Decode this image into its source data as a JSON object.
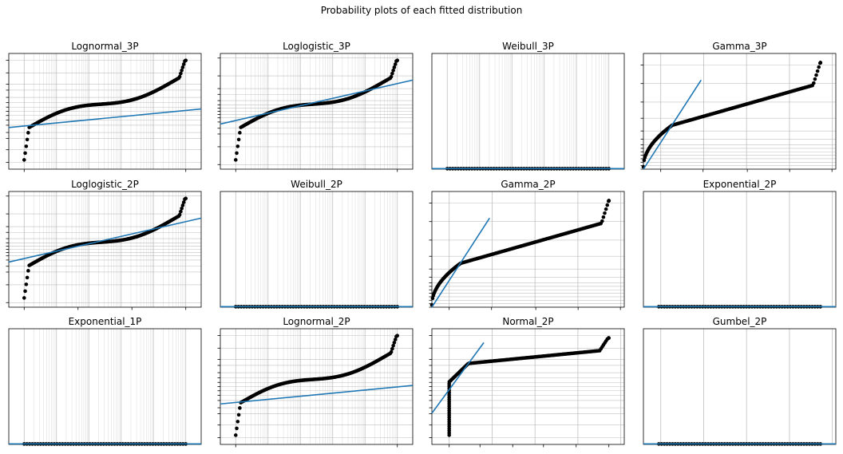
{
  "figure": {
    "title": "Probability plots of each fitted distribution",
    "colors": {
      "points": "#000000",
      "fit_line": "#1f77b4",
      "grid": "#b0b0b0",
      "axes": "#000000"
    }
  },
  "chart_data": [
    {
      "title": "Lognormal_3P",
      "type": "scatter",
      "grid_x": "log",
      "grid_y": "probit",
      "curve": "sigmoid",
      "fit": [
        [
          0.0,
          0.36
        ],
        [
          1.0,
          0.52
        ]
      ],
      "fit_label": "",
      "xticks": [
        0.08,
        0.92
      ],
      "yticks": "none"
    },
    {
      "title": "Loglogistic_3P",
      "type": "scatter",
      "grid_x": "log",
      "grid_y": "logit",
      "curve": "sigmoid",
      "fit": [
        [
          0.0,
          0.39
        ],
        [
          1.0,
          0.77
        ]
      ],
      "xticks": [
        0.08,
        0.92
      ],
      "yticks": "none"
    },
    {
      "title": "Weibull_3P",
      "type": "scatter",
      "grid_x": "log",
      "grid_y": "none",
      "curve": "flat",
      "fit": [
        [
          0.0,
          0.005
        ],
        [
          1.0,
          0.005
        ]
      ],
      "xticks": [],
      "yticks": "none"
    },
    {
      "title": "Gamma_3P",
      "type": "scatter",
      "grid_x": "linear",
      "grid_y": "gamma",
      "curve": "gamma",
      "fit": [
        [
          0.0,
          0.0
        ],
        [
          0.3,
          0.77
        ]
      ],
      "xticks": [
        0.09,
        0.31,
        0.54,
        0.76,
        0.98
      ],
      "yticks": "none"
    },
    {
      "title": "Loglogistic_2P",
      "type": "scatter",
      "grid_x": "log",
      "grid_y": "logit",
      "curve": "sigmoid",
      "fit": [
        [
          0.0,
          0.39
        ],
        [
          1.0,
          0.77
        ]
      ],
      "xticks": [
        0.08,
        0.36,
        0.64,
        0.92
      ],
      "yticks": "none"
    },
    {
      "title": "Weibull_2P",
      "type": "scatter",
      "grid_x": "log",
      "grid_y": "none",
      "curve": "flat",
      "fit": [
        [
          0.0,
          0.005
        ],
        [
          1.0,
          0.005
        ]
      ],
      "xticks": [],
      "yticks": "none"
    },
    {
      "title": "Gamma_2P",
      "type": "scatter",
      "grid_x": "linear",
      "grid_y": "gamma",
      "curve": "gamma",
      "fit": [
        [
          0.0,
          0.0
        ],
        [
          0.3,
          0.77
        ]
      ],
      "xticks": [
        0.09,
        0.31,
        0.54,
        0.76,
        0.98
      ],
      "yticks": "none"
    },
    {
      "title": "Exponential_2P",
      "type": "scatter",
      "grid_x": "linear",
      "grid_y": "none",
      "curve": "flat",
      "fit": [
        [
          0.0,
          0.005
        ],
        [
          1.0,
          0.005
        ]
      ],
      "xticks": [],
      "yticks": "none"
    },
    {
      "title": "Exponential_1P",
      "type": "scatter",
      "grid_x": "log",
      "grid_y": "none",
      "curve": "flat",
      "fit": [
        [
          0.0,
          0.005
        ],
        [
          1.0,
          0.005
        ]
      ],
      "xticks": [],
      "yticks": "none"
    },
    {
      "title": "Lognormal_2P",
      "type": "scatter",
      "grid_x": "log",
      "grid_y": "probit",
      "curve": "sigmoid",
      "fit": [
        [
          0.0,
          0.35
        ],
        [
          1.0,
          0.51
        ]
      ],
      "xticks": [
        0.08,
        0.92
      ],
      "yticks": "none"
    },
    {
      "title": "Normal_2P",
      "type": "scatter",
      "grid_x": "linear",
      "grid_y": "probit",
      "curve": "normal",
      "fit": [
        [
          0.0,
          0.27
        ],
        [
          0.27,
          0.88
        ]
      ],
      "xticks": [
        0.09,
        0.25,
        0.42,
        0.58,
        0.75,
        0.92
      ],
      "yticks": "none"
    },
    {
      "title": "Gumbel_2P",
      "type": "scatter",
      "grid_x": "linear",
      "grid_y": "none",
      "curve": "flat",
      "fit": [
        [
          0.0,
          0.005
        ],
        [
          1.0,
          0.005
        ]
      ],
      "xticks": [],
      "yticks": "none"
    }
  ]
}
